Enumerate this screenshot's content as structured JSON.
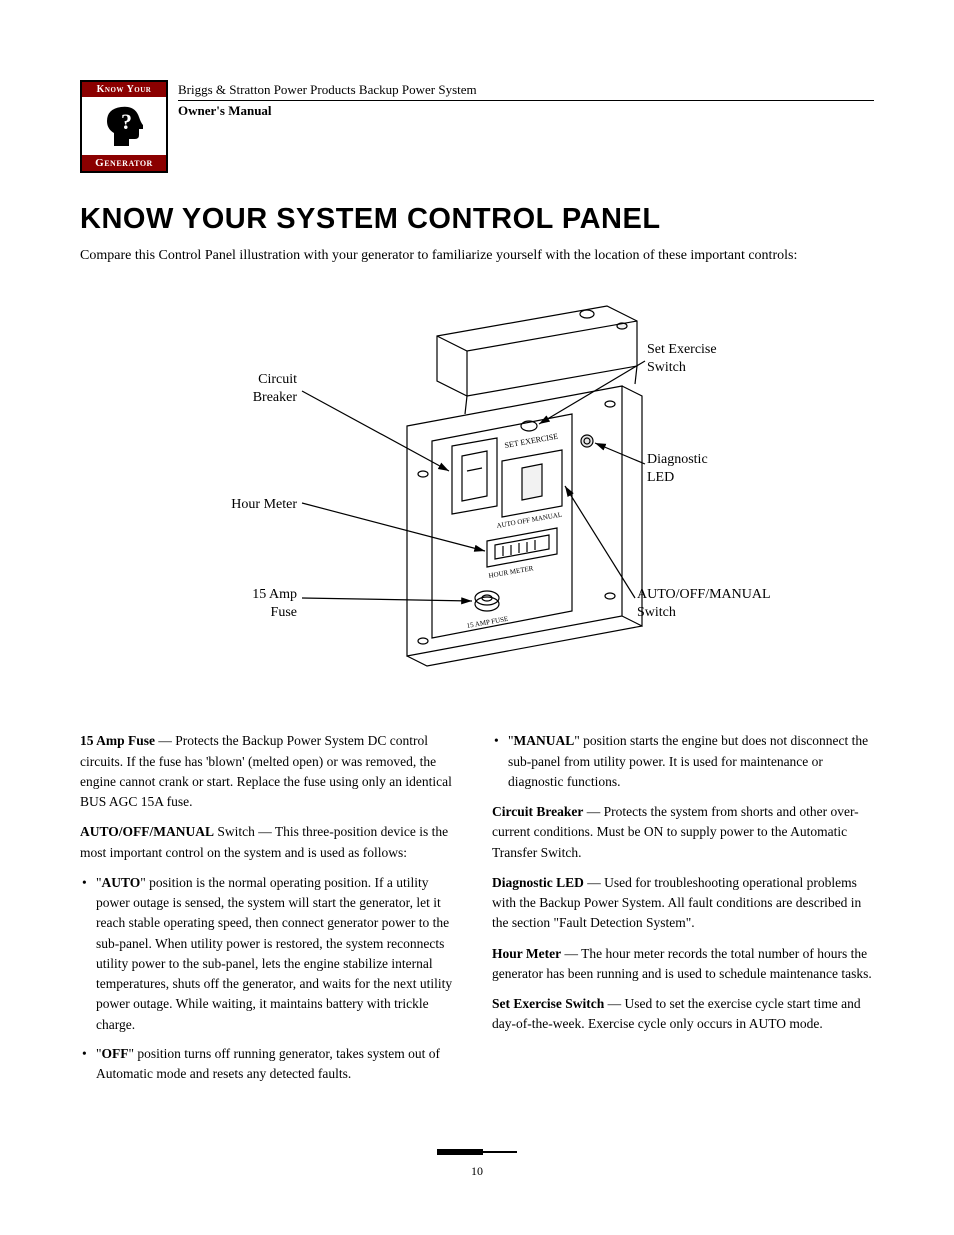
{
  "header": {
    "logo_top": "Know Your",
    "logo_bottom": "Generator",
    "doc_title": "Briggs & Stratton Power Products Backup Power System",
    "owner_line": "Owner's Manual"
  },
  "heading": "KNOW YOUR SYSTEM CONTROL PANEL",
  "intro": "Compare this Control Panel illustration with your generator to familiarize yourself with the location of these important controls:",
  "diagram": {
    "callouts": {
      "circuit_breaker": "Circuit\nBreaker",
      "hour_meter": "Hour Meter",
      "fuse": "15 Amp\nFuse",
      "set_exercise": "Set Exercise\nSwitch",
      "diag_led": "Diagnostic\nLED",
      "auto_switch": "AUTO/OFF/MANUAL\nSwitch"
    },
    "panel_labels": {
      "set_exercise": "SET EXERCISE",
      "auto_off_manual": "AUTO OFF MANUAL",
      "hour_meter": "HOUR METER",
      "fuse": "15 AMP FUSE"
    }
  },
  "left_col": {
    "p1_bold": "15 Amp Fuse",
    "p1_rest": " — Protects the Backup Power System DC control circuits. If the fuse has 'blown' (melted open) or was removed, the engine cannot crank or start. Replace the fuse using only an identical BUS AGC 15A fuse.",
    "p2_bold": "AUTO/OFF/MANUAL",
    "p2_rest": " Switch — This three-position device is the most important control on the system and is used as follows:",
    "bullets": [
      {
        "bold": "AUTO",
        "rest": "\" position is the normal operating position. If a utility power outage is sensed, the system will start the generator, let it reach stable operating speed, then connect generator power to the sub-panel. When utility power is restored, the system reconnects utility power to the sub-panel, lets the engine stabilize internal temperatures, shuts off the generator, and waits for the next utility power outage. While waiting, it maintains battery with trickle charge."
      },
      {
        "bold": "OFF",
        "rest": "\" position turns off running generator, takes system out of Automatic mode and resets any detected faults."
      }
    ]
  },
  "right_col": {
    "bullets": [
      {
        "bold": "MANUAL",
        "rest": "\" position starts the engine but does not disconnect the sub-panel from utility power. It is used for maintenance or diagnostic functions."
      }
    ],
    "p1_bold": "Circuit Breaker",
    "p1_rest": " — Protects the system from shorts and other over-current conditions. Must be ON to supply power to the Automatic Transfer Switch.",
    "p2_bold": "Diagnostic LED",
    "p2_rest": " — Used for troubleshooting operational problems with the Backup Power System. All fault conditions are described in the section \"Fault Detection System\".",
    "p3_bold": "Hour Meter",
    "p3_rest": " — The hour meter records the total number of hours the generator has been running and is used to schedule maintenance tasks.",
    "p4_bold": "Set Exercise Switch",
    "p4_rest": " — Used to set the exercise cycle start time and day-of-the-week. Exercise cycle only occurs in AUTO mode."
  },
  "page_number": "10"
}
